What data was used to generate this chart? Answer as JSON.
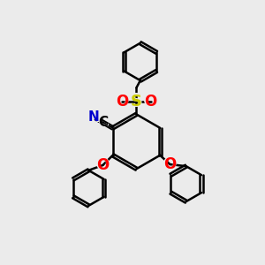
{
  "bg_color": "#ebebeb",
  "bond_color": "#000000",
  "bond_width": 1.8,
  "dbo": 0.055,
  "S_color": "#cccc00",
  "O_color": "#ff0000",
  "N_color": "#0000cd",
  "C_color": "#000000",
  "S_fontsize": 13,
  "O_fontsize": 12,
  "N_fontsize": 11,
  "C_fontsize": 11,
  "xlim": [
    0,
    10
  ],
  "ylim": [
    0,
    10
  ]
}
